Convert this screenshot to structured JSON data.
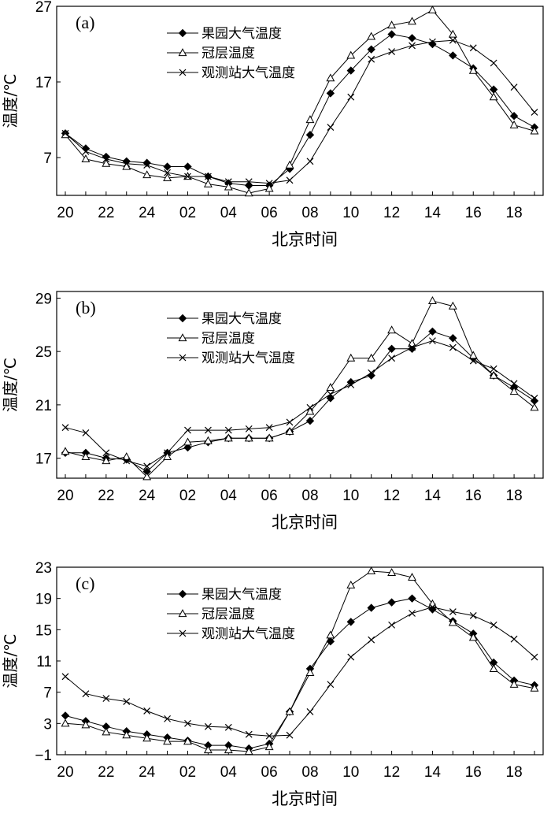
{
  "figure": {
    "xlabel": "北京时间",
    "ylabel": "温度/℃",
    "x_tick_labels": [
      "20",
      "22",
      "24",
      "02",
      "04",
      "06",
      "08",
      "10",
      "12",
      "14",
      "16",
      "18"
    ],
    "legend": [
      "果园大气温度",
      "冠层温度",
      "观测站大气温度"
    ],
    "marker_icons": [
      "filled-diamond-icon",
      "open-triangle-icon",
      "cross-icon"
    ]
  },
  "chart_data": [
    {
      "type": "line",
      "label": "(a)",
      "x": [
        "20",
        "21",
        "22",
        "23",
        "24",
        "01",
        "02",
        "03",
        "04",
        "05",
        "06",
        "07",
        "08",
        "09",
        "10",
        "11",
        "12",
        "13",
        "14",
        "15",
        "16",
        "17",
        "18",
        "19"
      ],
      "ylim": [
        2,
        27
      ],
      "yticks": [
        7,
        17,
        27
      ],
      "xlabel": "北京时间",
      "ylabel": "温度/℃",
      "legend_position": "top-left",
      "series": [
        {
          "name": "果园大气温度",
          "values": [
            10.2,
            8.2,
            7.1,
            6.5,
            6.3,
            5.8,
            5.8,
            4.5,
            3.6,
            3.3,
            3.3,
            5.5,
            10.0,
            15.5,
            18.5,
            21.3,
            23.3,
            22.8,
            22.0,
            20.5,
            18.8,
            16.0,
            12.5,
            11.0
          ]
        },
        {
          "name": "冠层温度",
          "values": [
            10.0,
            6.8,
            6.2,
            5.8,
            4.7,
            4.3,
            4.5,
            3.5,
            3.1,
            2.3,
            2.9,
            6.0,
            12.0,
            17.5,
            20.5,
            23.0,
            24.5,
            25.0,
            26.5,
            23.3,
            18.5,
            15.0,
            11.3,
            10.5
          ]
        },
        {
          "name": "观测站大气温度",
          "values": [
            10.2,
            7.8,
            6.8,
            6.2,
            6.0,
            5.0,
            4.5,
            4.5,
            3.8,
            3.8,
            3.6,
            4.0,
            6.5,
            11.0,
            15.0,
            20.0,
            21.0,
            21.8,
            22.3,
            22.5,
            21.5,
            19.5,
            16.3,
            13.0
          ]
        }
      ]
    },
    {
      "type": "line",
      "label": "(b)",
      "x": [
        "20",
        "21",
        "22",
        "23",
        "24",
        "01",
        "02",
        "03",
        "04",
        "05",
        "06",
        "07",
        "08",
        "09",
        "10",
        "11",
        "12",
        "13",
        "14",
        "15",
        "16",
        "17",
        "18",
        "19"
      ],
      "ylim": [
        15.5,
        29.5
      ],
      "yticks": [
        17,
        21,
        25,
        29
      ],
      "xlabel": "北京时间",
      "ylabel": "温度/℃",
      "legend_position": "top-left",
      "series": [
        {
          "name": "果园大气温度",
          "values": [
            17.4,
            17.4,
            17.0,
            16.9,
            16.0,
            17.4,
            17.8,
            18.2,
            18.5,
            18.5,
            18.5,
            19.0,
            19.8,
            21.5,
            22.7,
            23.2,
            25.2,
            25.2,
            26.5,
            26.0,
            24.5,
            23.2,
            22.3,
            21.3
          ]
        },
        {
          "name": "冠层温度",
          "values": [
            17.5,
            17.1,
            16.8,
            17.1,
            15.6,
            17.1,
            18.2,
            18.3,
            18.5,
            18.5,
            18.5,
            19.0,
            20.5,
            22.3,
            24.5,
            24.5,
            26.6,
            25.6,
            28.8,
            28.4,
            24.7,
            23.2,
            22.0,
            20.8
          ]
        },
        {
          "name": "观测站大气温度",
          "values": [
            19.3,
            18.9,
            17.4,
            16.8,
            16.4,
            17.4,
            19.1,
            19.1,
            19.1,
            19.2,
            19.3,
            19.7,
            20.8,
            21.8,
            22.5,
            23.4,
            24.5,
            25.3,
            25.8,
            25.3,
            24.3,
            23.7,
            22.6,
            21.5
          ]
        }
      ]
    },
    {
      "type": "line",
      "label": "(c)",
      "x": [
        "20",
        "21",
        "22",
        "23",
        "24",
        "01",
        "02",
        "03",
        "04",
        "05",
        "06",
        "07",
        "08",
        "09",
        "10",
        "11",
        "12",
        "13",
        "14",
        "15",
        "16",
        "17",
        "18",
        "19"
      ],
      "ylim": [
        -1,
        23
      ],
      "yticks": [
        -1,
        3,
        7,
        11,
        15,
        19,
        23
      ],
      "xlabel": "北京时间",
      "ylabel": "温度/℃",
      "legend_position": "top-left",
      "series": [
        {
          "name": "果园大气温度",
          "values": [
            4.0,
            3.3,
            2.6,
            2.0,
            1.6,
            1.2,
            0.8,
            0.2,
            0.2,
            -0.2,
            0.4,
            4.5,
            10.0,
            13.5,
            16.0,
            17.8,
            18.5,
            19.0,
            17.6,
            16.1,
            14.5,
            10.8,
            8.5,
            7.9
          ]
        },
        {
          "name": "冠层温度",
          "values": [
            3.0,
            2.8,
            1.9,
            1.5,
            1.1,
            0.7,
            0.7,
            -0.4,
            -0.4,
            -0.6,
            0.0,
            4.5,
            9.5,
            14.3,
            20.7,
            22.5,
            22.3,
            21.7,
            18.3,
            15.9,
            14.0,
            10.0,
            8.0,
            7.5
          ]
        },
        {
          "name": "观测站大气温度",
          "values": [
            9.0,
            6.8,
            6.2,
            5.8,
            4.6,
            3.6,
            3.0,
            2.6,
            2.5,
            1.6,
            1.4,
            1.5,
            4.5,
            8.0,
            11.5,
            13.7,
            15.6,
            17.1,
            17.9,
            17.3,
            16.8,
            15.6,
            13.8,
            11.5
          ]
        }
      ]
    }
  ]
}
